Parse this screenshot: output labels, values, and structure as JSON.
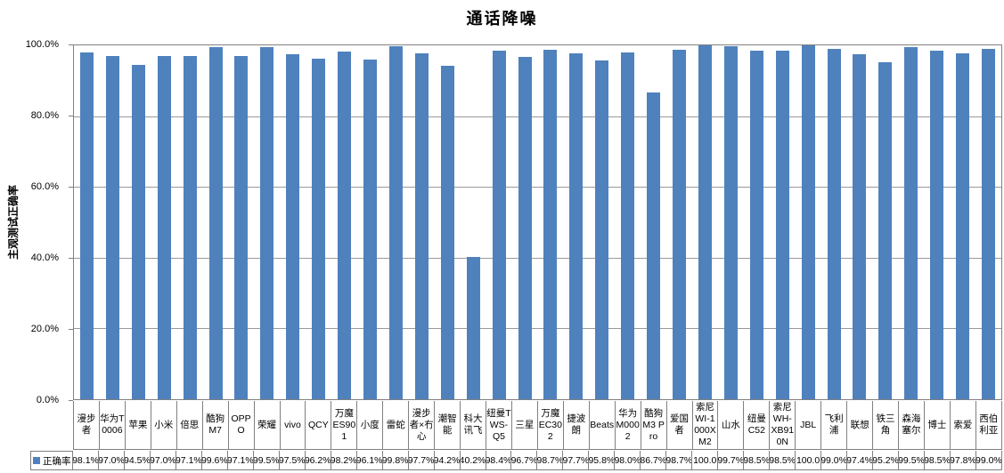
{
  "chart_data": {
    "type": "bar",
    "title": "通话降噪",
    "xlabel": "",
    "ylabel": "主观测试正确率",
    "series_name": "正确率",
    "legend": {
      "label": "正确率",
      "position": "bottom-left-of-data-table",
      "key_color": "#4F81BD"
    },
    "bar_color": "#4F81BD",
    "grid": true,
    "ylim": [
      0,
      100
    ],
    "y_ticks": [
      "100.0%",
      "80.0%",
      "60.0%",
      "40.0%",
      "20.0%",
      "0.0%"
    ],
    "categories": [
      "漫步者",
      "华为T0006",
      "苹果",
      "小米",
      "倍思",
      "酷狗M7",
      "OPPO",
      "荣耀",
      "vivo",
      "QCY",
      "万魔ES901",
      "小度",
      "雷蛇",
      "漫步者×冇心",
      "潮智能",
      "科大讯飞",
      "纽曼TWS-Q5",
      "三星",
      "万魔EC302",
      "捷波朗",
      "Beats",
      "华为M0002",
      "酷狗M3 Pro",
      "爱国者",
      "索尼WI-1000XM2",
      "山水",
      "纽曼C52",
      "索尼WH-XB910N",
      "JBL",
      "飞利浦",
      "联想",
      "铁三角",
      "森海塞尔",
      "博士",
      "索爱",
      "西伯利亚"
    ],
    "values": [
      98.1,
      97.0,
      94.5,
      97.0,
      97.1,
      99.6,
      97.1,
      99.5,
      97.5,
      96.2,
      98.2,
      96.1,
      99.8,
      97.7,
      94.2,
      40.2,
      98.4,
      96.7,
      98.7,
      97.7,
      95.8,
      98.0,
      86.7,
      98.7,
      100.0,
      99.7,
      98.5,
      98.5,
      100.0,
      99.0,
      97.4,
      95.2,
      99.5,
      98.5,
      97.8,
      99.0
    ],
    "values_display": [
      "98.1%",
      "97.0%",
      "94.5%",
      "97.0%",
      "97.1%",
      "99.6%",
      "97.1%",
      "99.5%",
      "97.5%",
      "96.2%",
      "98.2%",
      "96.1%",
      "99.8%",
      "97.7%",
      "94.2%",
      "40.2%",
      "98.4%",
      "96.7%",
      "98.7%",
      "97.7%",
      "95.8%",
      "98.0%",
      "86.7%",
      "98.7%",
      "100.0",
      "99.7%",
      "98.5%",
      "98.5%",
      "100.0",
      "99.0%",
      "97.4%",
      "95.2%",
      "99.5%",
      "98.5%",
      "97.8%",
      "99.0%"
    ]
  }
}
